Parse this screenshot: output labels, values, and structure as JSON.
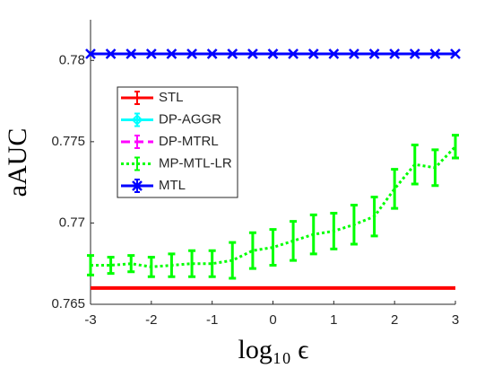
{
  "chart_data": {
    "type": "line",
    "xlabel": "log₁₀ ϵ",
    "ylabel": "aAUC",
    "x": [
      -3,
      -2.667,
      -2.333,
      -2,
      -1.667,
      -1.333,
      -1,
      -0.667,
      -0.333,
      0,
      0.333,
      0.667,
      1,
      1.333,
      1.667,
      2,
      2.333,
      2.667,
      3
    ],
    "xlim": [
      -3,
      3
    ],
    "xticks": [
      -3,
      -2,
      -1,
      0,
      1,
      2,
      3
    ],
    "ylim": [
      0.765,
      0.7825
    ],
    "yticks": [
      0.765,
      0.77,
      0.775,
      0.78
    ],
    "legend": "upper left",
    "series": [
      {
        "name": "STL",
        "color": "#ff0000",
        "style": "solid",
        "values": [
          0.766,
          0.766,
          0.766,
          0.766,
          0.766,
          0.766,
          0.766,
          0.766,
          0.766,
          0.766,
          0.766,
          0.766,
          0.766,
          0.766,
          0.766,
          0.766,
          0.766,
          0.766,
          0.766
        ]
      },
      {
        "name": "DP-AGGR",
        "color": "#00ffff",
        "style": "solid",
        "marker": "diamond"
      },
      {
        "name": "DP-MTRL",
        "color": "#ff00ff",
        "style": "dashed"
      },
      {
        "name": "MP-MTL-LR",
        "color": "#00ff00",
        "style": "dotted",
        "values": [
          0.7674,
          0.7674,
          0.7675,
          0.7673,
          0.7674,
          0.7675,
          0.7675,
          0.7677,
          0.7683,
          0.7685,
          0.7689,
          0.7693,
          0.7695,
          0.7699,
          0.7704,
          0.7721,
          0.7736,
          0.7734,
          0.7747
        ],
        "errors": [
          0.0006,
          0.0005,
          0.0005,
          0.0006,
          0.0007,
          0.0008,
          0.0008,
          0.0011,
          0.0011,
          0.0011,
          0.0012,
          0.0012,
          0.0011,
          0.0012,
          0.0012,
          0.0012,
          0.0012,
          0.0011,
          0.0007
        ]
      },
      {
        "name": "MTL",
        "color": "#0000ff",
        "style": "solid",
        "marker": "x",
        "values": [
          0.7804,
          0.7804,
          0.7804,
          0.7804,
          0.7804,
          0.7804,
          0.7804,
          0.7804,
          0.7804,
          0.7804,
          0.7804,
          0.7804,
          0.7804,
          0.7804,
          0.7804,
          0.7804,
          0.7804,
          0.7804,
          0.7804
        ]
      }
    ]
  }
}
